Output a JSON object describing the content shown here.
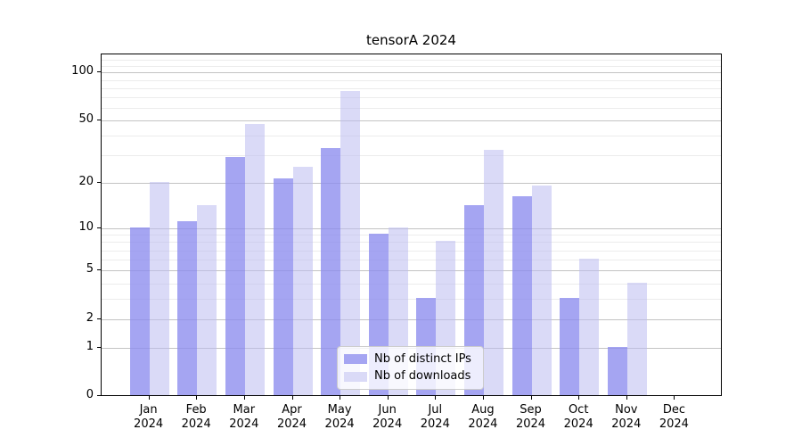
{
  "chart_data": {
    "type": "bar",
    "title": "tensorA 2024",
    "categories": [
      "Jan 2024",
      "Feb 2024",
      "Mar 2024",
      "Apr 2024",
      "May 2024",
      "Jun 2024",
      "Jul 2024",
      "Aug 2024",
      "Sep 2024",
      "Oct 2024",
      "Nov 2024",
      "Dec 2024"
    ],
    "series": [
      {
        "name": "Nb of distinct IPs",
        "color": "#a5a5f2",
        "color_rgba": "rgba(140,140,238,0.78)",
        "values": [
          10,
          11,
          29,
          21,
          33,
          9,
          3,
          14,
          16,
          3,
          1,
          0
        ]
      },
      {
        "name": "Nb of downloads",
        "color": "#dadaf7",
        "color_rgba": "rgba(188,188,240,0.55)",
        "values": [
          20,
          14,
          47,
          25,
          76,
          10,
          8,
          32,
          19,
          6,
          4,
          0
        ]
      }
    ],
    "xlabel": "",
    "ylabel": "",
    "yscale": "log1p",
    "ylim": [
      0,
      130
    ],
    "yticks": [
      0,
      1,
      2,
      5,
      10,
      20,
      50,
      100
    ],
    "yticks_minor": [
      3,
      4,
      6,
      7,
      8,
      9,
      30,
      40,
      60,
      70,
      80,
      90,
      110,
      120
    ],
    "grid": "both",
    "legend_position": "lower center"
  },
  "colors": {
    "axis": "#000000",
    "grid_major": "#c3c3c3",
    "grid_minor": "#ececec",
    "legend_border": "#cccccc"
  }
}
